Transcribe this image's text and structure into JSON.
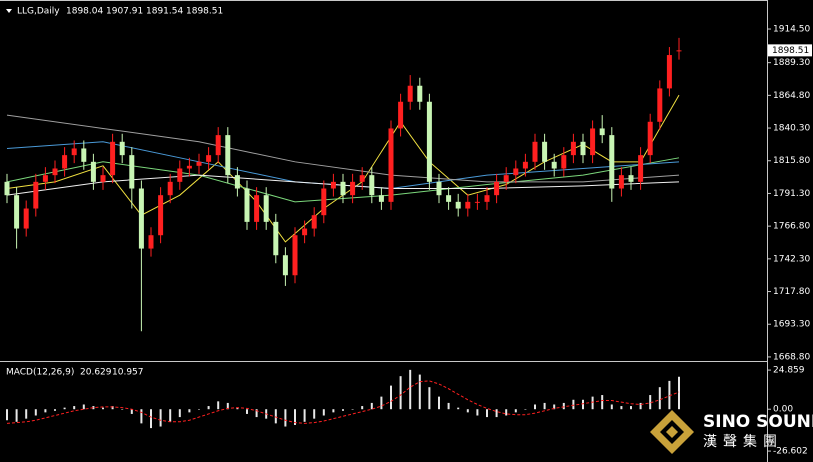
{
  "chart_data": [
    {
      "type": "candlestick",
      "title": "LLG,Daily",
      "up_color": "#ff2020",
      "down_color": "#c8f5b4",
      "open": [
        1800,
        1790,
        1765,
        1780,
        1800,
        1805,
        1810,
        1820,
        1825,
        1815,
        1800,
        1805,
        1830,
        1820,
        1795,
        1750,
        1760,
        1790,
        1800,
        1810,
        1812,
        1815,
        1820,
        1835,
        1805,
        1795,
        1770,
        1790,
        1770,
        1745,
        1730,
        1760,
        1765,
        1775,
        1795,
        1800,
        1790,
        1800,
        1805,
        1790,
        1785,
        1840,
        1860,
        1872,
        1860,
        1800,
        1790,
        1785,
        1780,
        1785,
        1785,
        1790,
        1800,
        1805,
        1810,
        1815,
        1830,
        1815,
        1810,
        1820,
        1830,
        1820,
        1840,
        1835,
        1795,
        1805,
        1800,
        1820,
        1845,
        1870,
        1898.04
      ],
      "high": [
        1806,
        1796,
        1786,
        1806,
        1811,
        1816,
        1826,
        1831,
        1831,
        1821,
        1811,
        1836,
        1836,
        1826,
        1801,
        1766,
        1796,
        1806,
        1816,
        1818,
        1821,
        1826,
        1841,
        1841,
        1811,
        1801,
        1796,
        1796,
        1776,
        1751,
        1766,
        1771,
        1781,
        1801,
        1806,
        1806,
        1806,
        1811,
        1811,
        1796,
        1846,
        1866,
        1880,
        1878,
        1866,
        1806,
        1796,
        1791,
        1791,
        1791,
        1796,
        1806,
        1811,
        1816,
        1821,
        1836,
        1836,
        1821,
        1826,
        1836,
        1836,
        1846,
        1850,
        1841,
        1811,
        1811,
        1826,
        1851,
        1876,
        1901,
        1907.91
      ],
      "low": [
        1784,
        1750,
        1759,
        1774,
        1794,
        1799,
        1804,
        1814,
        1809,
        1794,
        1794,
        1799,
        1814,
        1780,
        1688,
        1744,
        1754,
        1784,
        1794,
        1804,
        1806,
        1809,
        1814,
        1799,
        1789,
        1764,
        1764,
        1764,
        1739,
        1722,
        1724,
        1754,
        1759,
        1769,
        1789,
        1784,
        1784,
        1794,
        1784,
        1779,
        1779,
        1834,
        1854,
        1854,
        1794,
        1784,
        1779,
        1774,
        1774,
        1779,
        1779,
        1784,
        1794,
        1799,
        1804,
        1809,
        1809,
        1804,
        1804,
        1814,
        1814,
        1814,
        1829,
        1785,
        1789,
        1794,
        1794,
        1814,
        1839,
        1864,
        1891.54
      ],
      "close": [
        1790,
        1765,
        1780,
        1800,
        1805,
        1810,
        1820,
        1825,
        1815,
        1800,
        1805,
        1830,
        1820,
        1795,
        1750,
        1760,
        1790,
        1800,
        1810,
        1812,
        1815,
        1820,
        1835,
        1805,
        1795,
        1770,
        1790,
        1770,
        1745,
        1730,
        1760,
        1765,
        1775,
        1795,
        1800,
        1790,
        1800,
        1805,
        1790,
        1785,
        1840,
        1860,
        1872,
        1860,
        1800,
        1790,
        1785,
        1780,
        1785,
        1785,
        1790,
        1800,
        1805,
        1810,
        1815,
        1830,
        1815,
        1810,
        1820,
        1830,
        1820,
        1840,
        1835,
        1795,
        1805,
        1800,
        1820,
        1845,
        1870,
        1895,
        1898.51
      ],
      "lines": [
        {
          "color": "#f0e040",
          "x": [
            0,
            5,
            10,
            14,
            18,
            22,
            26,
            29,
            33,
            37,
            41,
            44,
            48,
            52,
            56,
            60,
            63,
            66,
            70
          ],
          "values": [
            1795,
            1800,
            1812,
            1775,
            1790,
            1815,
            1785,
            1755,
            1780,
            1800,
            1845,
            1815,
            1790,
            1798,
            1815,
            1828,
            1815,
            1815,
            1865
          ]
        },
        {
          "color": "#7cd87c",
          "x": [
            0,
            10,
            20,
            30,
            40,
            50,
            60,
            70
          ],
          "values": [
            1800,
            1815,
            1805,
            1785,
            1790,
            1798,
            1805,
            1818
          ]
        },
        {
          "color": "#4a9ad8",
          "x": [
            0,
            10,
            20,
            30,
            40,
            50,
            60,
            70
          ],
          "values": [
            1825,
            1830,
            1815,
            1800,
            1795,
            1805,
            1810,
            1815
          ]
        },
        {
          "color": "#a0a0a0",
          "x": [
            0,
            10,
            20,
            30,
            40,
            50,
            60,
            70
          ],
          "values": [
            1850,
            1840,
            1830,
            1815,
            1805,
            1800,
            1800,
            1805
          ]
        },
        {
          "color": "#f0f0f0",
          "x": [
            0,
            10,
            20,
            30,
            40,
            50,
            60,
            70
          ],
          "values": [
            1790,
            1800,
            1805,
            1800,
            1795,
            1795,
            1797,
            1800
          ]
        }
      ],
      "ylim": [
        1666.5,
        1934
      ],
      "yticks": [
        {
          "value": 1914.5,
          "label": "1914.50"
        },
        {
          "value": 1889.3,
          "label": "1889.30"
        },
        {
          "value": 1864.8,
          "label": "1864.80"
        },
        {
          "value": 1840.3,
          "label": "1840.30"
        },
        {
          "value": 1815.8,
          "label": "1815.80"
        },
        {
          "value": 1791.3,
          "label": "1791.30"
        },
        {
          "value": 1766.8,
          "label": "1766.80"
        },
        {
          "value": 1742.3,
          "label": "1742.30"
        },
        {
          "value": 1717.8,
          "label": "1717.80"
        },
        {
          "value": 1693.3,
          "label": "1693.30"
        },
        {
          "value": 1668.8,
          "label": "1668.80"
        }
      ],
      "current_price": 1898.51
    },
    {
      "type": "macd",
      "title": "MACD(12,26,9)",
      "hist_color": "#e8e8e8",
      "signal_color": "#ff2020",
      "values": [
        -7,
        -8,
        -6,
        -4,
        -2,
        -1,
        1,
        2,
        3,
        2,
        1,
        2,
        0,
        -3,
        -9,
        -12,
        -11,
        -8,
        -5,
        -2,
        0,
        2,
        5,
        4,
        1,
        -3,
        -5,
        -6,
        -9,
        -11,
        -10,
        -8,
        -6,
        -4,
        -2,
        -1,
        0,
        2,
        4,
        8,
        15,
        21,
        25,
        22,
        14,
        8,
        4,
        1,
        -2,
        -4,
        -5,
        -5,
        -4,
        -2,
        0,
        3,
        4,
        3,
        4,
        6,
        6,
        8,
        9,
        3,
        2,
        2,
        4,
        9,
        14,
        18,
        20.629
      ],
      "signal": [
        -9,
        -8.5,
        -8,
        -7,
        -5.5,
        -4,
        -2.5,
        -1,
        0,
        1,
        1.5,
        1.5,
        1,
        0,
        -2,
        -5,
        -7,
        -8,
        -8,
        -7,
        -5,
        -3,
        -1,
        0.5,
        1,
        0.5,
        -1,
        -3,
        -5,
        -7,
        -8.5,
        -9,
        -8.5,
        -7.5,
        -6,
        -4.5,
        -3,
        -1.5,
        0,
        2,
        5,
        9,
        14,
        17.5,
        18,
        16,
        13,
        9.5,
        6,
        3,
        0.5,
        -1.5,
        -3,
        -3.5,
        -3.5,
        -2.5,
        -1,
        0.5,
        1.5,
        2.5,
        3.5,
        4.5,
        5.5,
        5.5,
        4.5,
        3.5,
        3,
        4,
        6,
        8.5,
        10.957
      ],
      "ylim": [
        -31,
        30
      ],
      "yticks": [
        24.859,
        {
          "value": 0,
          "label": "0.00"
        },
        -26.602
      ]
    }
  ],
  "logo": {
    "name": "SINO SOUND",
    "chinese": "漢聲集團"
  }
}
